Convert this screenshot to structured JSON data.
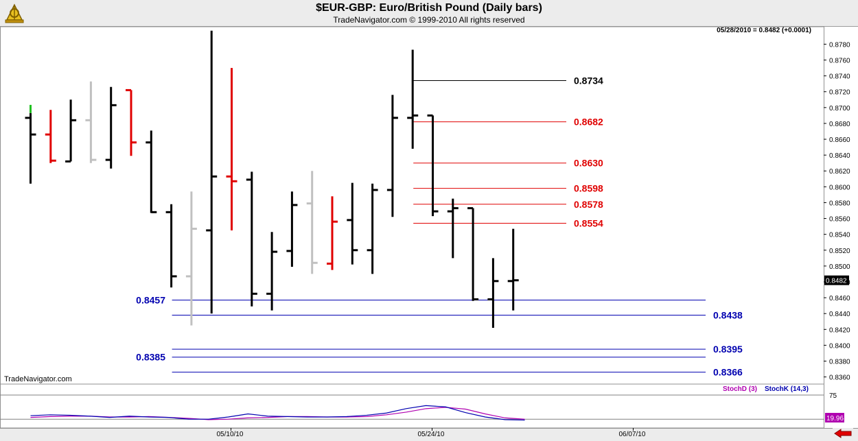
{
  "header": {
    "title": "$EUR-GBP:  Euro/British Pound  (Daily bars)",
    "subtitle": "TradeNavigator.com © 1999-2010 All rights reserved",
    "last_value": "05/28/2010 = 0.8482 (+0.0001)",
    "watermark": "TradeNavigator.com"
  },
  "colors": {
    "bar_up": "#000000",
    "bar_down": "#e00000",
    "bar_neutral": "#c0c0c0",
    "bar_green": "#20c020",
    "fib_high": "#000000",
    "fib_resistance": "#e00000",
    "fib_support": "#0000b0",
    "stoch_d": "#b000b0",
    "stoch_k": "#0000b0"
  },
  "chart_data": [
    {
      "type": "ohlc",
      "title": "$EUR-GBP:  Euro/British Pound  (Daily bars)",
      "y_axis": {
        "ylim": [
          0.8351,
          0.8802
        ],
        "ticks": [
          "0.8780",
          "0.8760",
          "0.8740",
          "0.8720",
          "0.8700",
          "0.8680",
          "0.8660",
          "0.8640",
          "0.8620",
          "0.8600",
          "0.8580",
          "0.8560",
          "0.8540",
          "0.8520",
          "0.8500",
          "0.8480",
          "0.8460",
          "0.8440",
          "0.8420",
          "0.8400",
          "0.8380",
          "0.8360"
        ],
        "current_price_label": "0.8482"
      },
      "x_axis": {
        "dates": [
          "05/10/10",
          "05/24/10",
          "06/07/10"
        ]
      },
      "bars": [
        {
          "o": 0.8687,
          "h": 0.8693,
          "l": 0.8604,
          "c": 0.8666,
          "color": "black"
        },
        {
          "o": 0.8666,
          "h": 0.8697,
          "l": 0.863,
          "c": 0.8633,
          "color": "red"
        },
        {
          "o": 0.8632,
          "h": 0.871,
          "l": 0.8632,
          "c": 0.8684,
          "color": "black"
        },
        {
          "o": 0.8684,
          "h": 0.8733,
          "l": 0.863,
          "c": 0.8634,
          "color": "gray"
        },
        {
          "o": 0.8634,
          "h": 0.8726,
          "l": 0.8623,
          "c": 0.8703,
          "color": "black"
        },
        {
          "o": 0.8722,
          "h": 0.8722,
          "l": 0.8639,
          "c": 0.8656,
          "color": "red"
        },
        {
          "o": 0.8656,
          "h": 0.8671,
          "l": 0.8567,
          "c": 0.8568,
          "color": "black"
        },
        {
          "o": 0.8568,
          "h": 0.8578,
          "l": 0.8473,
          "c": 0.8487,
          "color": "black"
        },
        {
          "o": 0.8487,
          "h": 0.8594,
          "l": 0.8425,
          "c": 0.8547,
          "color": "gray"
        },
        {
          "o": 0.8545,
          "h": 0.8797,
          "l": 0.844,
          "c": 0.8613,
          "color": "black"
        },
        {
          "o": 0.8613,
          "h": 0.875,
          "l": 0.8545,
          "c": 0.8607,
          "color": "red"
        },
        {
          "o": 0.8609,
          "h": 0.8619,
          "l": 0.8449,
          "c": 0.8465,
          "color": "black"
        },
        {
          "o": 0.8465,
          "h": 0.8543,
          "l": 0.8444,
          "c": 0.8518,
          "color": "black"
        },
        {
          "o": 0.8519,
          "h": 0.8594,
          "l": 0.8499,
          "c": 0.8577,
          "color": "black"
        },
        {
          "o": 0.8579,
          "h": 0.862,
          "l": 0.849,
          "c": 0.8504,
          "color": "gray"
        },
        {
          "o": 0.8503,
          "h": 0.8588,
          "l": 0.8495,
          "c": 0.8556,
          "color": "red"
        },
        {
          "o": 0.8558,
          "h": 0.8605,
          "l": 0.8502,
          "c": 0.852,
          "color": "black"
        },
        {
          "o": 0.852,
          "h": 0.8604,
          "l": 0.849,
          "c": 0.8596,
          "color": "black"
        },
        {
          "o": 0.8596,
          "h": 0.8716,
          "l": 0.8562,
          "c": 0.8687,
          "color": "black"
        },
        {
          "o": 0.8687,
          "h": 0.8773,
          "l": 0.8648,
          "c": 0.869,
          "color": "black"
        },
        {
          "o": 0.869,
          "h": 0.869,
          "l": 0.8563,
          "c": 0.8569,
          "color": "black"
        },
        {
          "o": 0.8569,
          "h": 0.8585,
          "l": 0.851,
          "c": 0.8573,
          "color": "black"
        },
        {
          "o": 0.8573,
          "h": 0.8573,
          "l": 0.8456,
          "c": 0.8458,
          "color": "black"
        },
        {
          "o": 0.8458,
          "h": 0.851,
          "l": 0.8422,
          "c": 0.8481,
          "color": "black"
        },
        {
          "o": 0.8481,
          "h": 0.8547,
          "l": 0.8444,
          "c": 0.8482,
          "color": "black"
        }
      ],
      "levels": [
        {
          "value": 0.8734,
          "label": "0.8734",
          "color": "black",
          "from_bar": 19,
          "label_side": "right"
        },
        {
          "value": 0.8682,
          "label": "0.8682",
          "color": "red",
          "from_bar": 19,
          "label_side": "right"
        },
        {
          "value": 0.863,
          "label": "0.8630",
          "color": "red",
          "from_bar": 19,
          "label_side": "right"
        },
        {
          "value": 0.8598,
          "label": "0.8598",
          "color": "red",
          "from_bar": 19,
          "label_side": "right"
        },
        {
          "value": 0.8578,
          "label": "0.8578",
          "color": "red",
          "from_bar": 19,
          "label_side": "right"
        },
        {
          "value": 0.8554,
          "label": "0.8554",
          "color": "red",
          "from_bar": 19,
          "label_side": "right"
        },
        {
          "value": 0.8457,
          "label": "0.8457",
          "color": "blue",
          "from_bar": 7,
          "label_side": "left"
        },
        {
          "value": 0.8438,
          "label": "0.8438",
          "color": "blue",
          "from_bar": 7,
          "label_side": "right"
        },
        {
          "value": 0.8395,
          "label": "0.8395",
          "color": "blue",
          "from_bar": 7,
          "label_side": "right"
        },
        {
          "value": 0.8385,
          "label": "0.8385",
          "color": "blue",
          "from_bar": 7,
          "label_side": "left"
        },
        {
          "value": 0.8366,
          "label": "0.8366",
          "color": "blue",
          "from_bar": 7,
          "label_side": "right"
        }
      ]
    },
    {
      "type": "line",
      "legend": [
        "StochD (3)",
        "StochK (14,3)"
      ],
      "ylim": [
        0,
        100
      ],
      "reference_lines": [
        75,
        20
      ],
      "ticks": [
        "75"
      ],
      "current_value_label": "19.96",
      "series": [
        {
          "name": "StochD (3)",
          "color": "purple",
          "values": [
            24,
            26,
            27,
            27,
            25,
            25,
            26,
            24,
            22,
            19,
            20,
            23,
            24,
            26,
            26,
            25,
            25,
            26,
            30,
            36,
            44,
            47,
            43,
            32,
            23,
            20
          ]
        },
        {
          "name": "StochK (14,3)",
          "color": "blue",
          "values": [
            28,
            30,
            29,
            27,
            24,
            27,
            25,
            24,
            20,
            20,
            25,
            32,
            27,
            26,
            25,
            25,
            26,
            29,
            34,
            44,
            51,
            48,
            35,
            25,
            19,
            18
          ]
        }
      ]
    }
  ]
}
